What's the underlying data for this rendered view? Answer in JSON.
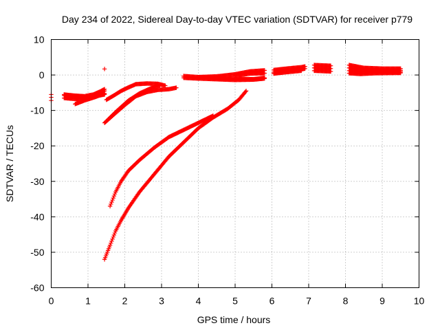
{
  "chart_data": {
    "type": "scatter",
    "title": "Day 234 of 2022, Sidereal Day-to-day VTEC variation (SDTVAR) for receiver p779",
    "xlabel": "GPS time / hours",
    "ylabel": "SDTVAR / TECUs",
    "xlim": [
      0,
      10
    ],
    "ylim": [
      -60,
      10
    ],
    "xticks": [
      "0",
      "1",
      "2",
      "3",
      "4",
      "5",
      "6",
      "7",
      "8",
      "9",
      "10"
    ],
    "yticks": [
      "10",
      "0",
      "-10",
      "-20",
      "-30",
      "-40",
      "-50",
      "-60"
    ],
    "grid": true,
    "marker": "plus",
    "color": "#ff0000",
    "segments": [
      {
        "x": [
          0.0,
          0.0,
          0.0
        ],
        "y": [
          -5.5,
          -6.3,
          -7.2
        ],
        "step": 0.1
      },
      {
        "x": [
          1.45
        ],
        "y": [
          1.7
        ],
        "step": 0.1
      },
      {
        "x": [
          0.35,
          0.6,
          0.9,
          1.15,
          1.3,
          1.45
        ],
        "y": [
          -5.5,
          -5.8,
          -6.0,
          -5.5,
          -4.8,
          -4.0
        ],
        "step": 0.02
      },
      {
        "x": [
          0.35,
          0.7,
          1.0,
          1.3,
          1.45
        ],
        "y": [
          -5.8,
          -6.0,
          -6.3,
          -5.2,
          -4.5
        ],
        "step": 0.02
      },
      {
        "x": [
          0.35,
          0.7,
          1.0,
          1.3,
          1.45
        ],
        "y": [
          -6.5,
          -6.8,
          -6.8,
          -5.8,
          -5.5
        ],
        "step": 0.02
      },
      {
        "x": [
          0.65,
          0.9,
          1.2,
          1.45
        ],
        "y": [
          -8.2,
          -7.2,
          -6.2,
          -5.2
        ],
        "step": 0.02
      },
      {
        "x": [
          1.5,
          1.7,
          1.9,
          2.1,
          2.3,
          2.6,
          2.9,
          3.1
        ],
        "y": [
          -7.0,
          -5.8,
          -4.5,
          -3.5,
          -2.6,
          -2.4,
          -2.5,
          -3.0
        ],
        "step": 0.02
      },
      {
        "x": [
          1.45,
          1.7,
          2.0,
          2.3,
          2.6,
          2.9,
          3.2,
          3.4
        ],
        "y": [
          -13.5,
          -11.2,
          -8.5,
          -6.0,
          -4.8,
          -4.2,
          -4.0,
          -3.6
        ],
        "step": 0.02
      },
      {
        "x": [
          1.55,
          1.8,
          2.1,
          2.4,
          2.7,
          2.95
        ],
        "y": [
          -12.5,
          -10.0,
          -7.2,
          -5.2,
          -3.8,
          -3.0
        ],
        "step": 0.02
      },
      {
        "x": [
          1.6,
          1.75,
          1.9,
          2.1,
          2.4,
          2.8,
          3.2,
          3.6,
          4.0,
          4.4
        ],
        "y": [
          -37.0,
          -33.0,
          -30.0,
          -27.0,
          -24.0,
          -20.5,
          -17.5,
          -15.5,
          -13.5,
          -11.5
        ],
        "step": 0.02
      },
      {
        "x": [
          1.45,
          1.6,
          1.75,
          1.9,
          2.1,
          2.4,
          2.8,
          3.2,
          3.6,
          4.0,
          4.4,
          4.8,
          5.1,
          5.3
        ],
        "y": [
          -52.0,
          -48.0,
          -44.0,
          -41.0,
          -37.5,
          -33.0,
          -28.0,
          -23.0,
          -19.0,
          -15.0,
          -12.0,
          -9.5,
          -7.0,
          -4.5
        ],
        "step": 0.02
      },
      {
        "x": [
          3.6,
          4.0,
          4.5,
          5.0,
          5.5,
          5.8
        ],
        "y": [
          -0.3,
          -0.6,
          -0.9,
          -1.1,
          -1.2,
          -0.8
        ],
        "step": 0.02
      },
      {
        "x": [
          3.6,
          4.0,
          4.5,
          5.0,
          5.5,
          5.8
        ],
        "y": [
          -0.8,
          -1.0,
          -1.2,
          -1.4,
          -1.3,
          -1.0
        ],
        "step": 0.02
      },
      {
        "x": [
          4.0,
          4.5,
          5.0,
          5.4,
          5.8
        ],
        "y": [
          -0.6,
          -0.4,
          0.2,
          1.0,
          1.3
        ],
        "step": 0.02
      },
      {
        "x": [
          5.0,
          5.4,
          5.8
        ],
        "y": [
          -0.2,
          0.4,
          0.5
        ],
        "step": 0.02
      },
      {
        "x": [
          6.05,
          6.4,
          6.8,
          6.9
        ],
        "y": [
          1.4,
          1.8,
          2.2,
          2.4
        ],
        "step": 0.02
      },
      {
        "x": [
          6.05,
          6.4,
          6.8,
          6.9
        ],
        "y": [
          0.8,
          1.2,
          1.6,
          1.8
        ],
        "step": 0.02
      },
      {
        "x": [
          6.05,
          6.4,
          6.8
        ],
        "y": [
          0.4,
          0.8,
          1.2
        ],
        "step": 0.02
      },
      {
        "x": [
          7.15,
          7.6
        ],
        "y": [
          2.8,
          2.6
        ],
        "step": 0.02
      },
      {
        "x": [
          7.15,
          7.6
        ],
        "y": [
          2.0,
          1.8
        ],
        "step": 0.02
      },
      {
        "x": [
          7.15,
          7.6
        ],
        "y": [
          1.2,
          1.0
        ],
        "step": 0.02
      },
      {
        "x": [
          8.1,
          8.5,
          9.0,
          9.5
        ],
        "y": [
          2.8,
          2.0,
          1.8,
          1.8
        ],
        "step": 0.02
      },
      {
        "x": [
          8.1,
          8.5,
          9.0,
          9.5
        ],
        "y": [
          2.0,
          1.5,
          1.3,
          1.3
        ],
        "step": 0.02
      },
      {
        "x": [
          8.1,
          8.5,
          9.0,
          9.5
        ],
        "y": [
          1.2,
          1.0,
          0.9,
          0.9
        ],
        "step": 0.02
      },
      {
        "x": [
          8.1,
          8.4,
          8.8,
          9.5
        ],
        "y": [
          0.5,
          0.3,
          0.5,
          0.6
        ],
        "step": 0.02
      }
    ]
  }
}
